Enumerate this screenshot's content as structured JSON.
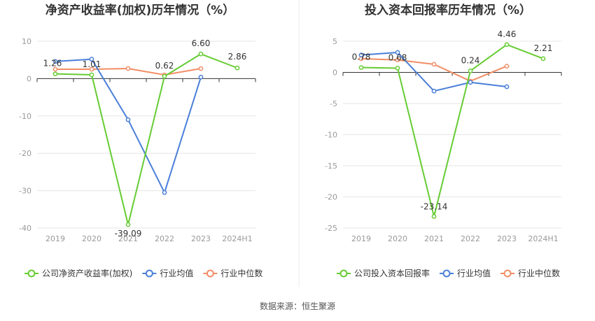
{
  "colors": {
    "company": "#66cc33",
    "industry_avg": "#4a7fd8",
    "industry_median": "#f28d66",
    "grid": "#e6e6e6",
    "axis": "#333333"
  },
  "legend": {
    "industry_avg": "行业均值",
    "industry_median": "行业中位数"
  },
  "source": "数据来源：恒生聚源",
  "chart_data": [
    {
      "type": "line",
      "title": "净资产收益率(加权)历年情况（%）",
      "categories": [
        "2019",
        "2020",
        "2021",
        "2022",
        "2023",
        "2024H1"
      ],
      "ylim": [
        -40,
        10
      ],
      "yticks": [
        10,
        0,
        -10,
        -20,
        -30,
        -40
      ],
      "grid": true,
      "legend_position": "bottom",
      "series": [
        {
          "key": "company",
          "name": "公司净资产收益率(加权)",
          "values": [
            1.26,
            1.01,
            -39.09,
            0.62,
            6.6,
            2.86
          ],
          "labels": [
            "1.26",
            "1.01",
            "-39.09",
            "0.62",
            "6.60",
            "2.86"
          ]
        },
        {
          "key": "industry_avg",
          "name": "行业均值",
          "values": [
            4.6,
            5.2,
            -11.0,
            -30.5,
            0.4,
            null
          ]
        },
        {
          "key": "industry_median",
          "name": "行业中位数",
          "values": [
            2.5,
            2.5,
            2.7,
            1.0,
            2.7,
            null
          ]
        }
      ]
    },
    {
      "type": "line",
      "title": "投入资本回报率历年情况（%）",
      "categories": [
        "2019",
        "2020",
        "2021",
        "2022",
        "2023",
        "2024H1"
      ],
      "ylim": [
        -25,
        5
      ],
      "yticks": [
        5,
        0,
        -5,
        -10,
        -15,
        -20,
        -25
      ],
      "grid": true,
      "legend_position": "bottom",
      "series": [
        {
          "key": "company",
          "name": "公司投入资本回报率",
          "values": [
            0.78,
            0.68,
            -23.14,
            0.24,
            4.46,
            2.21
          ],
          "labels": [
            "0.78",
            "0.68",
            "-23.14",
            "0.24",
            "4.46",
            "2.21"
          ]
        },
        {
          "key": "industry_avg",
          "name": "行业均值",
          "values": [
            2.8,
            3.2,
            -3.0,
            -1.6,
            -2.3,
            null
          ]
        },
        {
          "key": "industry_median",
          "name": "行业中位数",
          "values": [
            2.2,
            2.0,
            1.3,
            -1.4,
            1.0,
            null
          ]
        }
      ]
    }
  ]
}
